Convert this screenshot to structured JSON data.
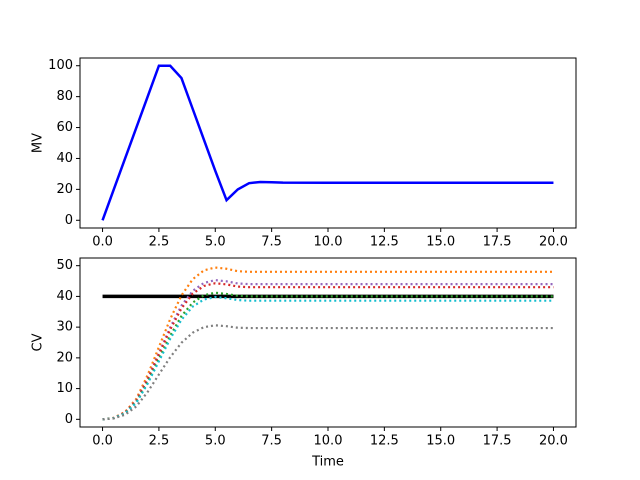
{
  "chart_data": [
    {
      "type": "line",
      "ylabel": "MV",
      "x": [
        0,
        0.5,
        1,
        1.5,
        2,
        2.5,
        3,
        3.5,
        4,
        4.5,
        5,
        5.5,
        6,
        6.5,
        7,
        7.5,
        8,
        10,
        12,
        14,
        16,
        18,
        20
      ],
      "series": [
        {
          "color": "#0000ff",
          "linestyle": "solid",
          "linewidth": 2.5,
          "values": [
            0,
            20,
            40,
            60,
            80,
            100,
            100,
            92,
            72,
            52,
            32,
            13,
            20,
            24,
            24.8,
            24.6,
            24.4,
            24.3,
            24.3,
            24.3,
            24.3,
            24.3,
            24.3
          ]
        }
      ],
      "xlim": [
        -1,
        21
      ],
      "xticks": [
        {
          "value": 0,
          "label": "0.0"
        },
        {
          "value": 2.5,
          "label": "2.5"
        },
        {
          "value": 5,
          "label": "5.0"
        },
        {
          "value": 7.5,
          "label": "7.5"
        },
        {
          "value": 10,
          "label": "10.0"
        },
        {
          "value": 12.5,
          "label": "12.5"
        },
        {
          "value": 15,
          "label": "15.0"
        },
        {
          "value": 17.5,
          "label": "17.5"
        },
        {
          "value": 20,
          "label": "20.0"
        }
      ],
      "ylim": [
        -5,
        105
      ],
      "yticks": [
        0,
        20,
        40,
        60,
        80,
        100
      ]
    },
    {
      "type": "line",
      "ylabel": "CV",
      "xlabel": "Time",
      "x": [
        0,
        0.5,
        1,
        1.5,
        2,
        2.5,
        3,
        3.5,
        4,
        4.5,
        5,
        5.5,
        6,
        6.5,
        7,
        7.5,
        8,
        10,
        12,
        14,
        16,
        18,
        20
      ],
      "series": [
        {
          "color": "#000000",
          "linestyle": "solid",
          "linewidth": 3.5,
          "values": [
            40,
            40,
            40,
            40,
            40,
            40,
            40,
            40,
            40,
            40,
            40,
            40,
            40,
            40,
            40,
            40,
            40,
            40,
            40,
            40,
            40,
            40,
            40
          ]
        },
        {
          "color": "#ff7f0e",
          "linestyle": "dotted",
          "linewidth": 2.2,
          "values": [
            0,
            0.5,
            2.4,
            6.7,
            14.4,
            23.5,
            32.6,
            40.3,
            45.6,
            48.5,
            49.4,
            49,
            48.2,
            48,
            48,
            48,
            48,
            48,
            48,
            48,
            48,
            48,
            48
          ]
        },
        {
          "color": "#9467bd",
          "linestyle": "dotted",
          "linewidth": 2.2,
          "values": [
            0,
            0.4,
            2.2,
            6.2,
            13.2,
            21.6,
            29.9,
            37,
            41.8,
            44.4,
            45.3,
            44.9,
            44.2,
            44,
            44,
            44,
            44,
            44,
            44,
            44,
            44,
            44,
            44
          ]
        },
        {
          "color": "#d62728",
          "linestyle": "dotted",
          "linewidth": 2.2,
          "values": [
            0,
            0.4,
            2.2,
            6,
            12.9,
            21.1,
            29.2,
            36.1,
            40.9,
            43.4,
            44.3,
            43.9,
            43.2,
            43,
            43,
            43,
            43,
            43,
            43,
            43,
            43,
            43,
            43
          ]
        },
        {
          "color": "#2ca02c",
          "linestyle": "dotted",
          "linewidth": 2.2,
          "values": [
            0,
            0.4,
            2,
            5.6,
            12,
            19.6,
            27.2,
            33.6,
            38,
            40.4,
            41.2,
            40.8,
            40.2,
            40,
            40,
            40,
            40,
            40,
            40,
            40,
            40,
            40,
            40
          ]
        },
        {
          "color": "#17becf",
          "linestyle": "dotted",
          "linewidth": 2.2,
          "values": [
            0,
            0.4,
            1.9,
            5.4,
            11.6,
            18.9,
            26.2,
            32.4,
            36.7,
            39,
            39.8,
            39.4,
            38.8,
            38.6,
            38.6,
            38.6,
            38.6,
            38.6,
            38.6,
            38.6,
            38.6,
            38.6,
            38.6
          ]
        },
        {
          "color": "#7f7f7f",
          "linestyle": "dotted",
          "linewidth": 2.2,
          "values": [
            0,
            0.3,
            1.5,
            4.2,
            8.9,
            14.6,
            20.2,
            24.9,
            28.2,
            30,
            30.6,
            30.3,
            29.8,
            29.7,
            29.7,
            29.7,
            29.7,
            29.7,
            29.7,
            29.7,
            29.7,
            29.7,
            29.7
          ]
        }
      ],
      "xlim": [
        -1,
        21
      ],
      "xticks": [
        {
          "value": 0,
          "label": "0.0"
        },
        {
          "value": 2.5,
          "label": "2.5"
        },
        {
          "value": 5,
          "label": "5.0"
        },
        {
          "value": 7.5,
          "label": "7.5"
        },
        {
          "value": 10,
          "label": "10.0"
        },
        {
          "value": 12.5,
          "label": "12.5"
        },
        {
          "value": 15,
          "label": "15.0"
        },
        {
          "value": 17.5,
          "label": "17.5"
        },
        {
          "value": 20,
          "label": "20.0"
        }
      ],
      "ylim": [
        -2.5,
        52.5
      ],
      "yticks": [
        0,
        10,
        20,
        30,
        40,
        50
      ]
    }
  ]
}
